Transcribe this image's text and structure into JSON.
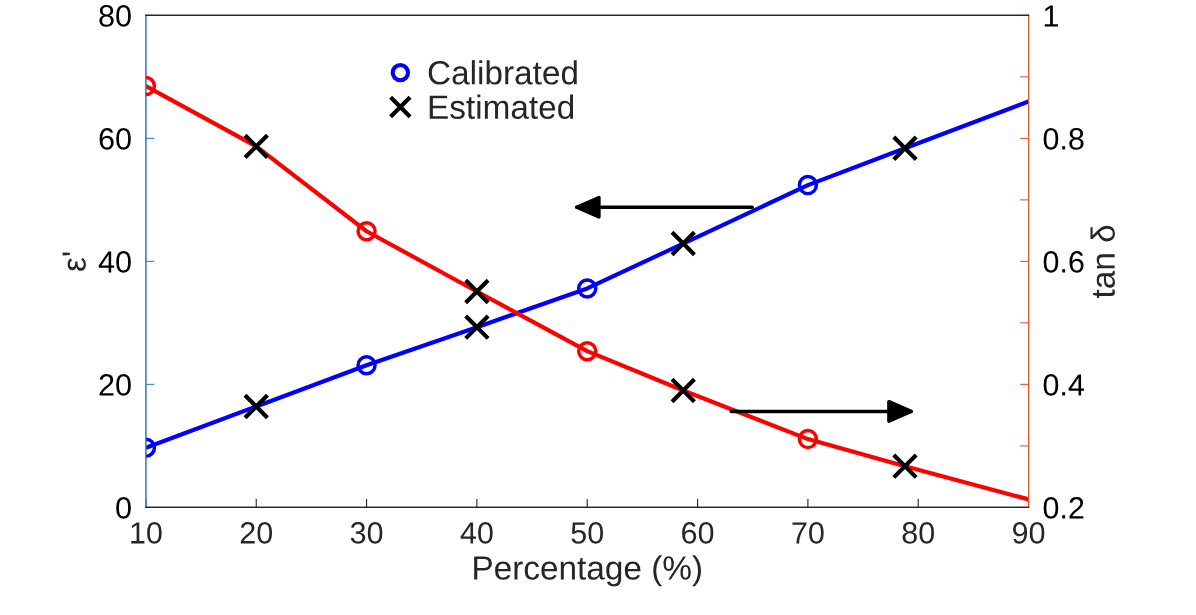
{
  "chart_data": {
    "type": "line",
    "xlabel": "Percentage (%)",
    "ylabel": "ε'",
    "y2label": "tan δ",
    "xlim": [
      10,
      90
    ],
    "xticks": [
      10,
      20,
      30,
      40,
      50,
      60,
      70,
      80,
      90
    ],
    "ylim": [
      0,
      80
    ],
    "yticks": [
      0,
      20,
      40,
      60,
      80
    ],
    "y2lim": [
      0.2,
      1
    ],
    "y2ticks": [
      0.2,
      {
        "value": 0.3,
        "label": null
      },
      0.4,
      {
        "value": 0.5,
        "label": null
      },
      0.6,
      {
        "value": 0.7,
        "label": null
      },
      0.8,
      {
        "value": 0.9,
        "label": null
      },
      1
    ],
    "legend": "top",
    "grid": false,
    "series": [
      {
        "color": "#0000ff",
        "marker": "none",
        "x": [
          10,
          20,
          30,
          40,
          50,
          58.7,
          70,
          78.8,
          90
        ],
        "values": [
          9.7,
          16.4,
          23.1,
          29.3,
          35.6,
          42.9,
          52.4,
          58.4,
          66.0
        ]
      },
      {
        "color": "#ff0000",
        "marker": "none",
        "axis": "y2",
        "x": [
          10,
          20,
          30,
          40,
          50,
          58.7,
          70,
          78.8,
          90
        ],
        "values": [
          0.885,
          0.787,
          0.649,
          0.551,
          0.454,
          0.39,
          0.311,
          0.267,
          0.213
        ]
      },
      {
        "type": "scatter",
        "name": "Calibrated",
        "color": "#0000ff",
        "marker": "circle",
        "x": [
          10,
          30,
          50,
          70
        ],
        "values": [
          9.7,
          23.1,
          35.6,
          52.4
        ]
      },
      {
        "type": "scatter",
        "color": "#ff0000",
        "marker": "circle",
        "axis": "y2",
        "x": [
          10,
          30,
          50,
          70
        ],
        "values": [
          0.885,
          0.649,
          0.454,
          0.311
        ]
      },
      {
        "type": "scatter",
        "name": "Estimated",
        "color": "#000000",
        "marker": "cross",
        "x": [
          20,
          40,
          58.7,
          78.8
        ],
        "values": [
          16.4,
          29.3,
          42.9,
          58.4
        ]
      },
      {
        "type": "scatter",
        "color": "#000000",
        "marker": "cross",
        "axis": "y2",
        "x": [
          20,
          40,
          58.7,
          78.8
        ],
        "values": [
          0.787,
          0.551,
          0.39,
          0.267
        ]
      }
    ]
  }
}
